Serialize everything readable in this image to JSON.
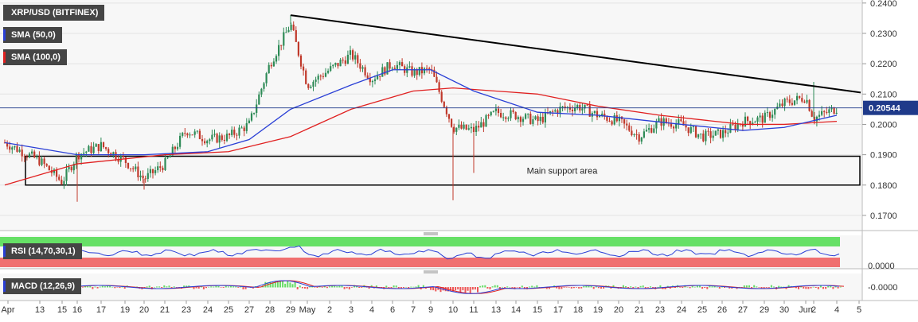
{
  "legend": {
    "pair_label": "XRP/USD (BITFINEX)",
    "sma50_label": "SMA (50,0)",
    "sma100_label": "SMA (100,0)",
    "sma50_color": "#2a3fd6",
    "sma100_color": "#e02020"
  },
  "colors": {
    "bull": "#2e8b57",
    "bear": "#c0392b",
    "trendline": "#000000",
    "price_tag_bg": "#1f3a8a",
    "rsi_upper": "#66e066",
    "rsi_lower": "#f07070",
    "rsi_line": "#2a3fd6"
  },
  "price_tag": "0.20544",
  "annotations": {
    "support_label": "Main support area"
  },
  "rsi": {
    "label": "RSI (14,70,30,1)",
    "axis_label": "0.0000"
  },
  "macd": {
    "label": "MACD (12,26,9)",
    "axis_label": "-0.0000"
  },
  "chart_data": {
    "type": "candlestick",
    "ylim": [
      0.165,
      0.241
    ],
    "y_ticks": [
      "0.1700",
      "0.1800",
      "0.1900",
      "0.2000",
      "0.2100",
      "0.2200",
      "0.2300",
      "0.2400"
    ],
    "x_ticks": [
      "Apr",
      "13",
      "15",
      "16",
      "17",
      "19",
      "20",
      "21",
      "23",
      "24",
      "25",
      "27",
      "28",
      "29",
      "May",
      "2",
      "3",
      "4",
      "6",
      "7",
      "9",
      "10",
      "11",
      "13",
      "14",
      "15",
      "17",
      "18",
      "19",
      "20",
      "21",
      "23",
      "24",
      "25",
      "26",
      "27",
      "29",
      "30",
      "Jun",
      "2",
      "4",
      "5"
    ],
    "price_path": [
      [
        "Apr 12",
        0.194
      ],
      [
        "Apr 13",
        0.188
      ],
      [
        "Apr 15",
        0.181
      ],
      [
        "Apr 16",
        0.19
      ],
      [
        "Apr 17",
        0.193
      ],
      [
        "Apr 19",
        0.188
      ],
      [
        "Apr 20",
        0.182
      ],
      [
        "Apr 21",
        0.187
      ],
      [
        "Apr 23",
        0.198
      ],
      [
        "Apr 24",
        0.195
      ],
      [
        "Apr 25",
        0.196
      ],
      [
        "Apr 27",
        0.2
      ],
      [
        "Apr 28",
        0.22
      ],
      [
        "Apr 29",
        0.233
      ],
      [
        "May 1",
        0.213
      ],
      [
        "May 2",
        0.218
      ],
      [
        "May 3",
        0.223
      ],
      [
        "May 4",
        0.215
      ],
      [
        "May 6",
        0.22
      ],
      [
        "May 7",
        0.217
      ],
      [
        "May 9",
        0.218
      ],
      [
        "May 10",
        0.199
      ],
      [
        "May 11",
        0.198
      ],
      [
        "May 13",
        0.204
      ],
      [
        "May 14",
        0.203
      ],
      [
        "May 15",
        0.201
      ],
      [
        "May 17",
        0.205
      ],
      [
        "May 18",
        0.206
      ],
      [
        "May 19",
        0.203
      ],
      [
        "May 20",
        0.201
      ],
      [
        "May 21",
        0.196
      ],
      [
        "May 23",
        0.201
      ],
      [
        "May 24",
        0.2
      ],
      [
        "May 25",
        0.196
      ],
      [
        "May 26",
        0.197
      ],
      [
        "May 27",
        0.201
      ],
      [
        "May 29",
        0.202
      ],
      [
        "May 30",
        0.207
      ],
      [
        "Jun 1",
        0.209
      ],
      [
        "Jun 2",
        0.202
      ],
      [
        "Jun 4",
        0.2054
      ]
    ],
    "sma50": [
      [
        "Apr 12",
        0.194
      ],
      [
        "Apr 16",
        0.19
      ],
      [
        "Apr 20",
        0.19
      ],
      [
        "Apr 24",
        0.191
      ],
      [
        "Apr 27",
        0.195
      ],
      [
        "Apr 29",
        0.205
      ],
      [
        "May 3",
        0.213
      ],
      [
        "May 6",
        0.218
      ],
      [
        "May 9",
        0.218
      ],
      [
        "May 11",
        0.211
      ],
      [
        "May 15",
        0.204
      ],
      [
        "May 19",
        0.203
      ],
      [
        "May 24",
        0.2
      ],
      [
        "May 27",
        0.198
      ],
      [
        "May 30",
        0.199
      ],
      [
        "Jun 4",
        0.203
      ]
    ],
    "sma100": [
      [
        "Apr 12",
        0.18
      ],
      [
        "Apr 16",
        0.187
      ],
      [
        "Apr 21",
        0.19
      ],
      [
        "Apr 25",
        0.191
      ],
      [
        "Apr 29",
        0.196
      ],
      [
        "May 3",
        0.205
      ],
      [
        "May 7",
        0.211
      ],
      [
        "May 10",
        0.212
      ],
      [
        "May 15",
        0.21
      ],
      [
        "May 19",
        0.206
      ],
      [
        "May 23",
        0.203
      ],
      [
        "May 27",
        0.2
      ],
      [
        "May 30",
        0.2
      ],
      [
        "Jun 4",
        0.201
      ]
    ],
    "trendline": [
      [
        "Apr 29",
        0.236
      ],
      [
        "Jun 5",
        0.2105
      ]
    ],
    "support_zone": {
      "from": "Apr 12",
      "to": "Jun 5",
      "low": 0.18,
      "high": 0.1895
    },
    "last_price": 0.20544
  }
}
